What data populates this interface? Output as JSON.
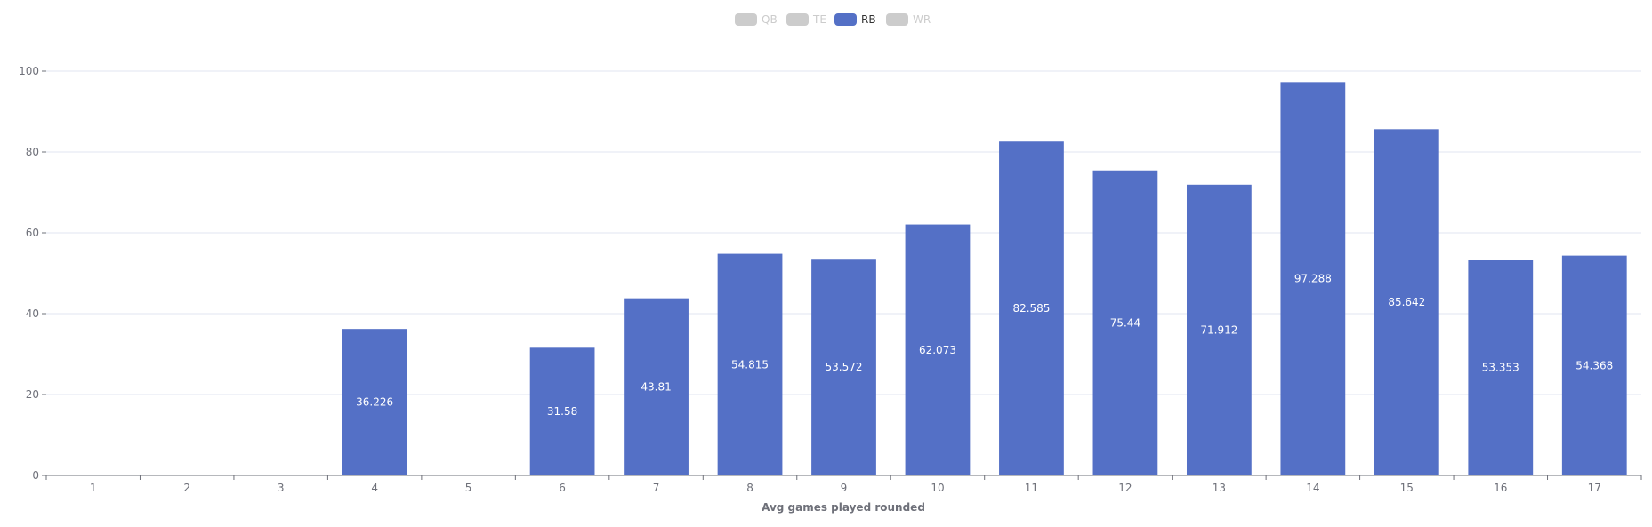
{
  "chart_data": {
    "type": "bar",
    "xlabel": "Avg games played rounded",
    "ylabel": "",
    "ylim": [
      0,
      100
    ],
    "yticks": [
      0,
      20,
      40,
      60,
      80,
      100
    ],
    "grid": true,
    "legend_position": "top-center",
    "legend": [
      {
        "name": "QB",
        "active": false
      },
      {
        "name": "TE",
        "active": false
      },
      {
        "name": "RB",
        "active": true
      },
      {
        "name": "WR",
        "active": false
      }
    ],
    "categories": [
      "1",
      "2",
      "3",
      "4",
      "5",
      "6",
      "7",
      "8",
      "9",
      "10",
      "11",
      "12",
      "13",
      "14",
      "15",
      "16",
      "17"
    ],
    "series": [
      {
        "name": "RB",
        "color": "#5470c6",
        "values": [
          null,
          null,
          null,
          36.226,
          null,
          31.58,
          43.81,
          54.815,
          53.572,
          62.073,
          82.585,
          75.44,
          71.912,
          97.288,
          85.642,
          53.353,
          54.368
        ]
      }
    ],
    "colors": {
      "bar": "#5470c6",
      "legend_inactive": "#cccccc",
      "legend_inactive_text": "#cccccc",
      "legend_active_text": "#333333",
      "grid": "#e0e6f1",
      "axis": "#6e7079",
      "label": "#ffffff"
    }
  }
}
